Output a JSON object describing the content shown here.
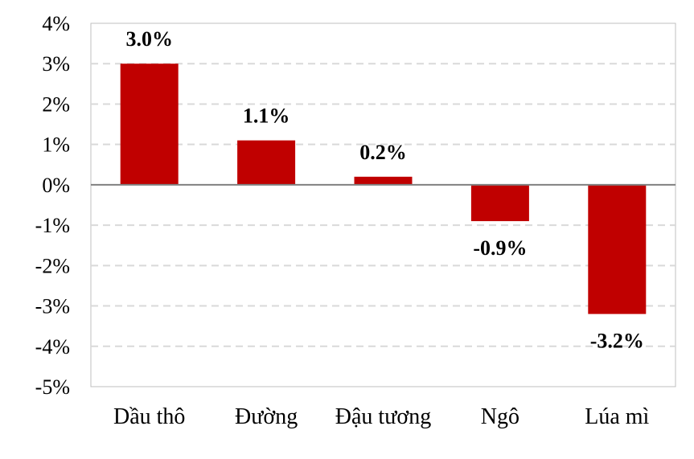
{
  "chart_data": {
    "type": "bar",
    "title": "",
    "xlabel": "",
    "ylabel": "",
    "categories": [
      "Dầu thô",
      "Đường",
      "Đậu tương",
      "Ngô",
      "Lúa mì"
    ],
    "values": [
      3.0,
      1.1,
      0.2,
      -0.9,
      -3.2
    ],
    "data_labels": [
      "3.0%",
      "1.1%",
      "0.2%",
      "-0.9%",
      "-3.2%"
    ],
    "ylim": [
      -5,
      4
    ],
    "yticks": [
      4,
      3,
      2,
      1,
      0,
      -1,
      -2,
      -3,
      -4,
      -5
    ],
    "ytick_labels": [
      "4%",
      "3%",
      "2%",
      "1%",
      "0%",
      "-1%",
      "-2%",
      "-3%",
      "-4%",
      "-5%"
    ],
    "grid": true,
    "grid_style": "dashed",
    "legend": "none",
    "colors": {
      "bar": "#C00000",
      "grid": "#D9D9D9",
      "zero_line": "#808080",
      "border": "#BFBFBF"
    }
  }
}
